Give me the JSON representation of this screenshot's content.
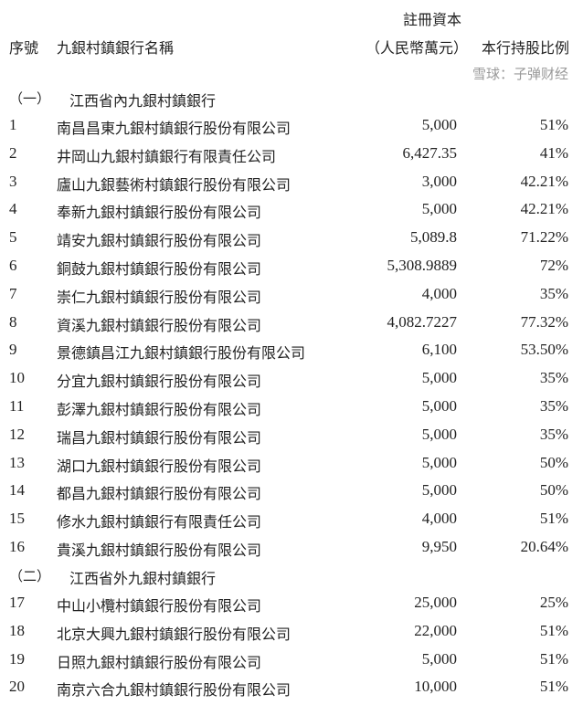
{
  "header": {
    "col_index": "序號",
    "col_name": "九銀村鎮銀行名稱",
    "col_capital_line1": "註冊資本",
    "col_capital_line2": "（人民幣萬元）",
    "col_share": "本行持股比例"
  },
  "sections": [
    {
      "label": "（一）",
      "title": "江西省內九銀村鎮銀行",
      "rows": [
        {
          "no": "1",
          "name": "南昌昌東九銀村鎮銀行股份有限公司",
          "capital": "5,000",
          "share": "51%"
        },
        {
          "no": "2",
          "name": "井岡山九銀村鎮銀行有限責任公司",
          "capital": "6,427.35",
          "share": "41%"
        },
        {
          "no": "3",
          "name": "廬山九銀藝術村鎮銀行股份有限公司",
          "capital": "3,000",
          "share": "42.21%"
        },
        {
          "no": "4",
          "name": "奉新九銀村鎮銀行股份有限公司",
          "capital": "5,000",
          "share": "42.21%"
        },
        {
          "no": "5",
          "name": "靖安九銀村鎮銀行股份有限公司",
          "capital": "5,089.8",
          "share": "71.22%"
        },
        {
          "no": "6",
          "name": "銅鼓九銀村鎮銀行股份有限公司",
          "capital": "5,308.9889",
          "share": "72%"
        },
        {
          "no": "7",
          "name": "崇仁九銀村鎮銀行股份有限公司",
          "capital": "4,000",
          "share": "35%"
        },
        {
          "no": "8",
          "name": "資溪九銀村鎮銀行股份有限公司",
          "capital": "4,082.7227",
          "share": "77.32%"
        },
        {
          "no": "9",
          "name": "景德鎮昌江九銀村鎮銀行股份有限公司",
          "capital": "6,100",
          "share": "53.50%"
        },
        {
          "no": "10",
          "name": "分宜九銀村鎮銀行股份有限公司",
          "capital": "5,000",
          "share": "35%"
        },
        {
          "no": "11",
          "name": "彭澤九銀村鎮銀行股份有限公司",
          "capital": "5,000",
          "share": "35%"
        },
        {
          "no": "12",
          "name": "瑞昌九銀村鎮銀行股份有限公司",
          "capital": "5,000",
          "share": "35%"
        },
        {
          "no": "13",
          "name": "湖口九銀村鎮銀行股份有限公司",
          "capital": "5,000",
          "share": "50%"
        },
        {
          "no": "14",
          "name": "都昌九銀村鎮銀行股份有限公司",
          "capital": "5,000",
          "share": "50%"
        },
        {
          "no": "15",
          "name": "修水九銀村鎮銀行有限責任公司",
          "capital": "4,000",
          "share": "51%"
        },
        {
          "no": "16",
          "name": "貴溪九銀村鎮銀行股份有限公司",
          "capital": "9,950",
          "share": "20.64%"
        }
      ]
    },
    {
      "label": "（二）",
      "title": "江西省外九銀村鎮銀行",
      "rows": [
        {
          "no": "17",
          "name": "中山小欖村鎮銀行股份有限公司",
          "capital": "25,000",
          "share": "25%"
        },
        {
          "no": "18",
          "name": "北京大興九銀村鎮銀行股份有限公司",
          "capital": "22,000",
          "share": "51%"
        },
        {
          "no": "19",
          "name": "日照九銀村鎮銀行股份有限公司",
          "capital": "5,000",
          "share": "51%"
        },
        {
          "no": "20",
          "name": "南京六合九銀村鎮銀行股份有限公司",
          "capital": "10,000",
          "share": "51%"
        }
      ]
    }
  ],
  "watermark": "雪球：子弹财经"
}
